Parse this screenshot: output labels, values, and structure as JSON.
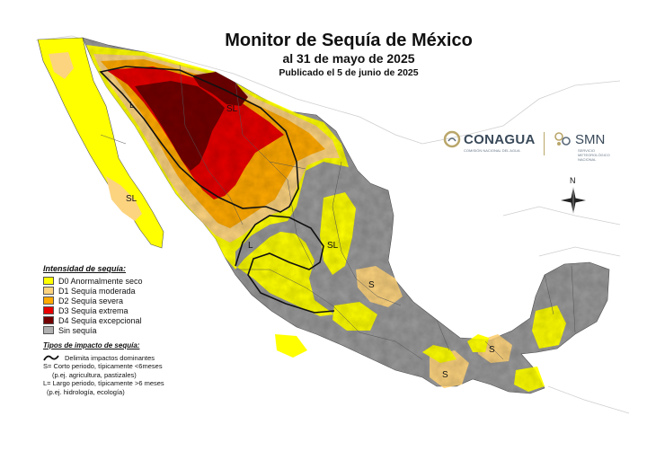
{
  "title": "Monitor de Sequía de México",
  "subtitle": "al 31 de mayo de 2025",
  "published": "Publicado el 5 de junio de 2025",
  "legend": {
    "heading": "Intensidad de sequía:",
    "items": [
      {
        "label": "D0 Anormalmente seco",
        "color": "#ffff00"
      },
      {
        "label": "D1 Sequía moderada",
        "color": "#fcd37f"
      },
      {
        "label": "D2 Sequía severa",
        "color": "#ffaa00"
      },
      {
        "label": "D3 Sequía extrema",
        "color": "#e60000"
      },
      {
        "label": "D4 Sequía excepcional",
        "color": "#730000"
      },
      {
        "label": "Sin sequía",
        "color": "#b0b0b0"
      }
    ]
  },
  "impacts": {
    "heading": "Tipos de impacto de sequía:",
    "boundary_label": "Delimita impactos dominantes",
    "short_line1": "S= Corto periodo, típicamente <6meses",
    "short_line2": "(p.ej. agricultura, pastizales)",
    "long_line1": "L= Largo periodo, típicamente >6 meses",
    "long_line2": "(p.ej. hidrología, ecología)"
  },
  "map_labels": {
    "long": "L",
    "short_long": "SL",
    "short": "S"
  },
  "logos": {
    "conagua": "CONAGUA",
    "conagua_sub": "COMISIÓN NACIONAL DEL AGUA",
    "smn": "SMN",
    "smn_sub1": "SERVICIO",
    "smn_sub2": "METEOROLÓGICO",
    "smn_sub3": "NACIONAL"
  },
  "compass": {
    "north": "N"
  },
  "colors": {
    "land_base": "#9a9a9a",
    "water": "#ffffff",
    "outline": "#555555"
  }
}
